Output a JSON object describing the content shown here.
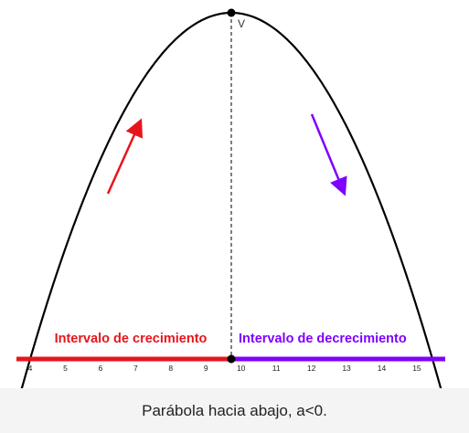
{
  "figure": {
    "vertex_label": "V",
    "left_label": "Intervalo de crecimiento",
    "right_label": "Intervalo de decrecimiento",
    "axis_ticks": [
      4,
      5,
      6,
      7,
      8,
      9,
      10,
      11,
      12,
      13,
      14,
      15
    ]
  },
  "caption": "Parábola hacia abajo, a<0."
}
